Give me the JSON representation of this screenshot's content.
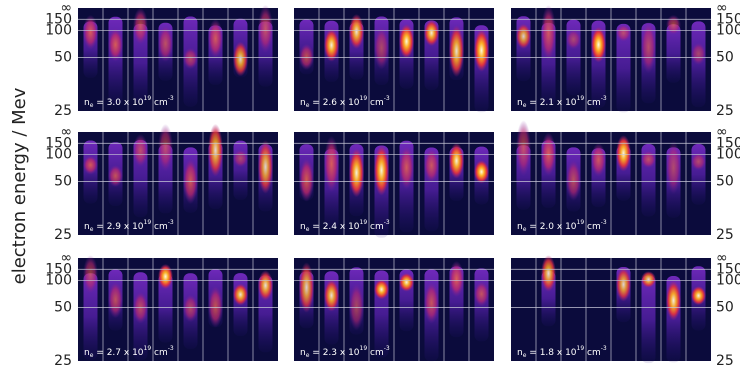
{
  "y_axis_label": "electron energy / Mev",
  "y_ticks": [
    "∞",
    "150",
    "100",
    "50",
    "25"
  ],
  "density_label": {
    "symbol": "n",
    "subscript": "e",
    "equals": " = ",
    "times": " x 10",
    "exponent": "19",
    "unit": " cm",
    "unit_exponent": "-3"
  },
  "panels": [
    {
      "density": "3.0"
    },
    {
      "density": "2.6"
    },
    {
      "density": "2.1"
    },
    {
      "density": "2.9"
    },
    {
      "density": "2.4"
    },
    {
      "density": "2.0"
    },
    {
      "density": "2.7"
    },
    {
      "density": "2.3"
    },
    {
      "density": "1.8"
    }
  ]
}
